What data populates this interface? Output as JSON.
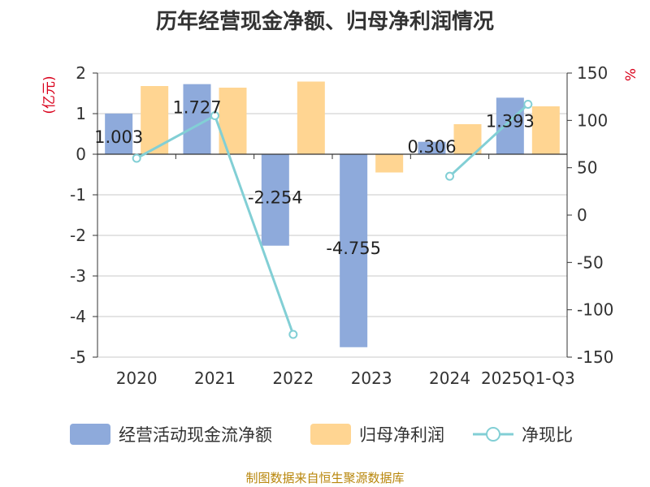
{
  "chart_data": {
    "type": "bar",
    "title": "历年经营现金净额、归母净利润情况",
    "categories": [
      "2020",
      "2021",
      "2022",
      "2023",
      "2024",
      "2025Q1-Q3"
    ],
    "y_left_label": "(亿元)",
    "y_right_label": "%",
    "y_left_range": [
      -5,
      2
    ],
    "y_left_ticks": [
      "2",
      "1",
      "0",
      "-1",
      "-2",
      "-3",
      "-4",
      "-5"
    ],
    "y_right_range": [
      -150,
      150
    ],
    "y_right_ticks": [
      "150",
      "100",
      "50",
      "0",
      "-50",
      "-100",
      "-150"
    ],
    "grid": true,
    "legend_position": "bottom",
    "series": [
      {
        "name": "经营活动现金流净额",
        "kind": "bar",
        "axis": "left",
        "color": "#8eaadb",
        "values": [
          1.003,
          1.727,
          -2.254,
          -4.755,
          0.306,
          1.393
        ],
        "labels": [
          "1.003",
          "1.727",
          "-2.254",
          "-4.755",
          "0.306",
          "1.393"
        ]
      },
      {
        "name": "归母净利润",
        "kind": "bar",
        "axis": "left",
        "color": "#ffd592",
        "values": [
          1.68,
          1.64,
          1.79,
          -0.45,
          0.74,
          1.18
        ]
      },
      {
        "name": "净现比",
        "kind": "line",
        "axis": "right",
        "color": "#82cfd5",
        "values": [
          60,
          105,
          -126,
          null,
          41,
          117
        ]
      }
    ]
  },
  "footer": {
    "source": "制图数据来自恒生聚源数据库"
  }
}
